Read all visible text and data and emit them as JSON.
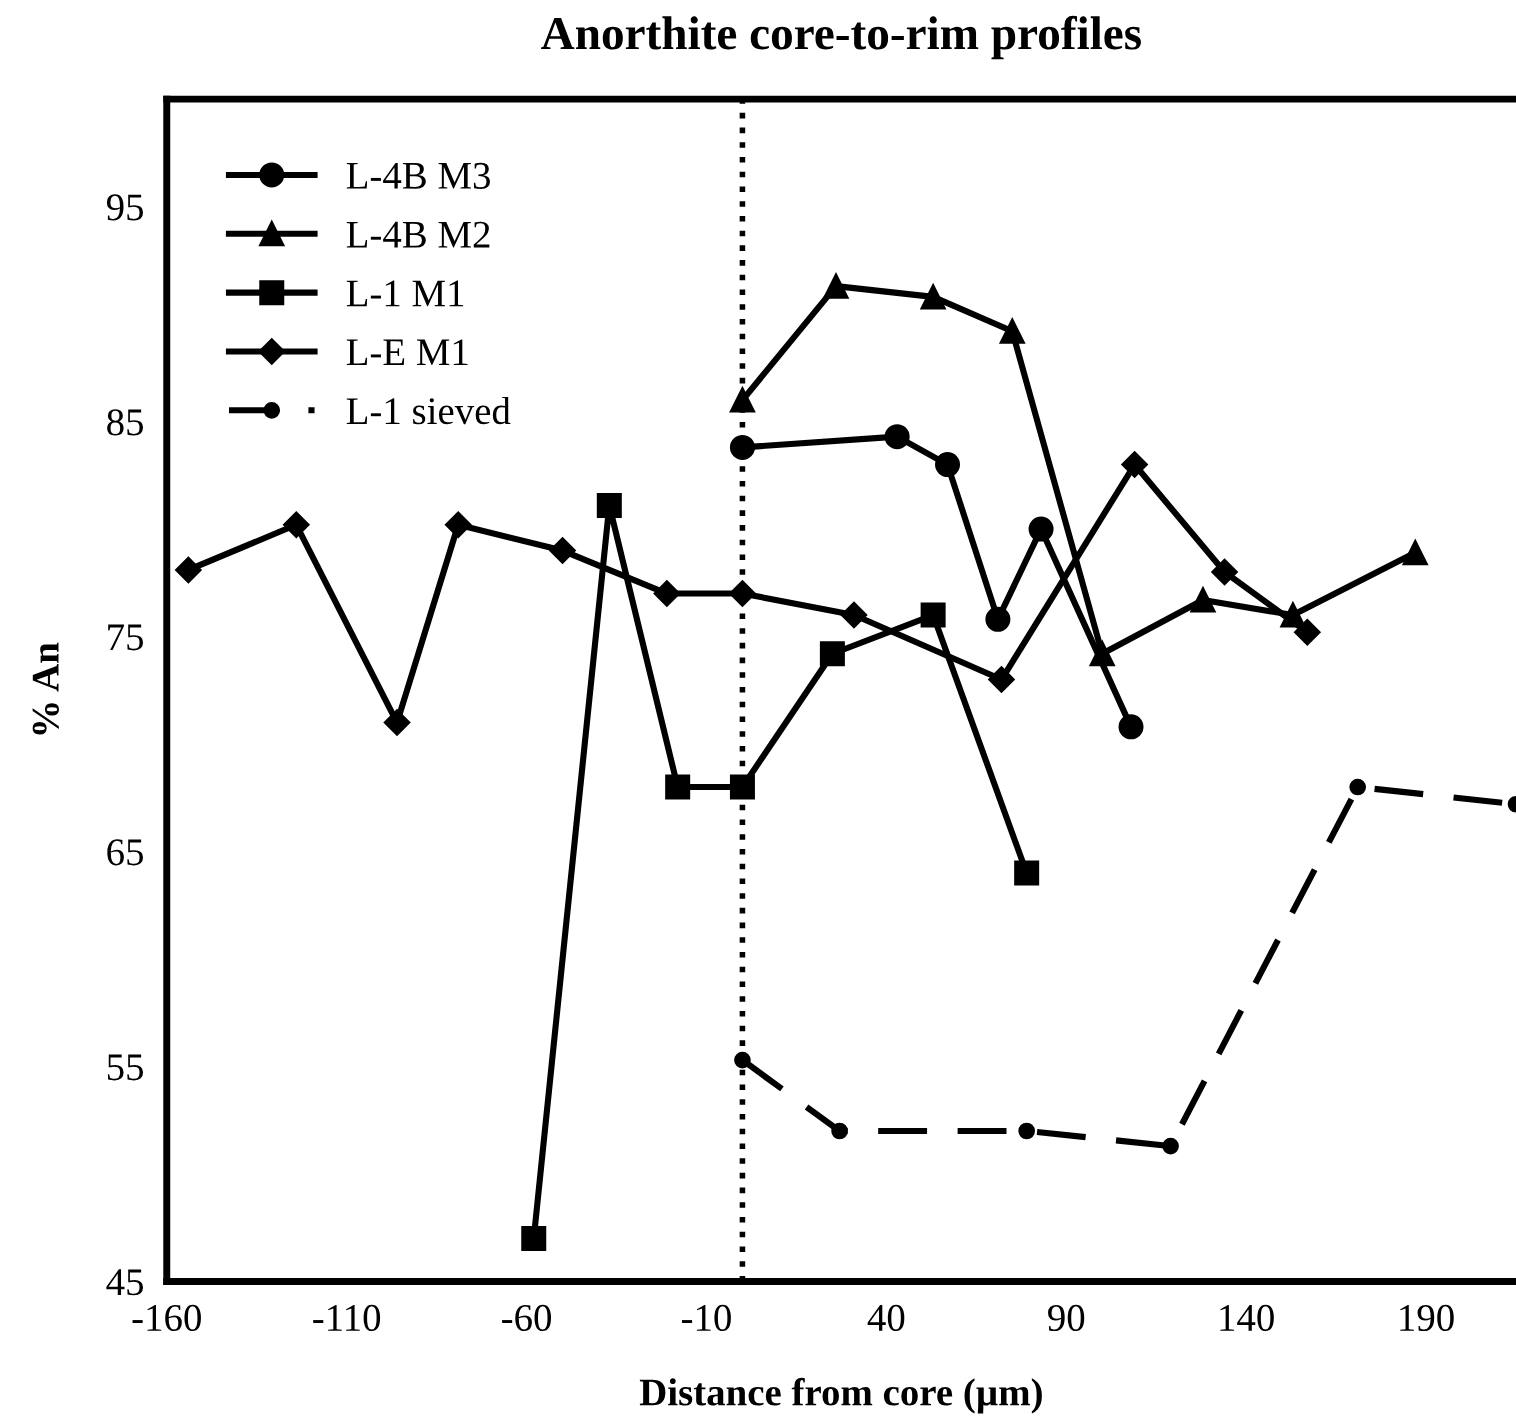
{
  "chart_data": {
    "type": "line",
    "title": "Anorthite core-to-rim profiles",
    "xlabel": "Distance from core (µm)",
    "ylabel": "% An",
    "xlim": [
      -160,
      215
    ],
    "xticks": [
      -160,
      -110,
      -60,
      -10,
      40,
      90,
      140,
      190
    ],
    "ylim": [
      45,
      100
    ],
    "yticks": [
      45,
      55,
      65,
      75,
      85,
      95
    ],
    "grid": false,
    "legend": "top left",
    "ref_lines": [
      {
        "axis": "x",
        "value": 0,
        "label": null,
        "color": "#000000",
        "line_style": "dotted"
      }
    ],
    "series": [
      {
        "name": "L-4B M3",
        "color": "#000000",
        "marker": "circle",
        "line_style": "solid",
        "x": [
          0,
          43,
          57,
          71,
          83,
          108
        ],
        "values": [
          83.8,
          84.3,
          83.0,
          75.8,
          80.0,
          70.8
        ]
      },
      {
        "name": "L-4B M2",
        "color": "#000000",
        "marker": "triangle",
        "line_style": "solid",
        "x": [
          0,
          26,
          53,
          75,
          100,
          128,
          153,
          187
        ],
        "values": [
          86.0,
          91.3,
          90.8,
          89.2,
          74.2,
          76.7,
          76.0,
          78.9
        ]
      },
      {
        "name": "L-1 M1",
        "color": "#000000",
        "marker": "square",
        "line_style": "solid",
        "x": [
          -58,
          -37,
          -18,
          0,
          25,
          53,
          79
        ],
        "values": [
          47.0,
          81.1,
          68.0,
          68.0,
          74.2,
          76.0,
          64.0
        ]
      },
      {
        "name": "L-E M1",
        "color": "#000000",
        "marker": "diamond",
        "line_style": "solid",
        "x": [
          -154,
          -124,
          -96,
          -79,
          -50,
          -21,
          0,
          31,
          72,
          109,
          134,
          157
        ],
        "values": [
          78.1,
          80.2,
          71.0,
          80.2,
          79.0,
          77.0,
          77.0,
          76.0,
          73.0,
          83.0,
          78.0,
          75.2
        ]
      },
      {
        "name": "L-1 sieved",
        "color": "#000000",
        "marker": "circle",
        "line_style": "dashed",
        "x": [
          0,
          27,
          79,
          119,
          171,
          215
        ],
        "values": [
          55.3,
          52.0,
          52.0,
          51.3,
          68.0,
          67.2
        ]
      }
    ]
  }
}
